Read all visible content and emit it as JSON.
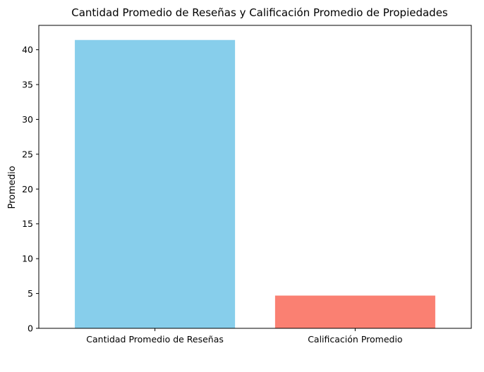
{
  "chart_data": {
    "type": "bar",
    "title": "Cantidad Promedio de Reseñas y Calificación Promedio de Propiedades",
    "xlabel": "",
    "ylabel": "Promedio",
    "categories": [
      "Cantidad Promedio de Reseñas",
      "Calificación Promedio"
    ],
    "values": [
      41.4,
      4.7
    ],
    "colors": [
      "#87ceeb",
      "#fa8072"
    ],
    "ylim": [
      0,
      43.5
    ],
    "yticks": [
      0,
      5,
      10,
      15,
      20,
      25,
      30,
      35,
      40
    ],
    "grid": false,
    "legend": "none"
  }
}
